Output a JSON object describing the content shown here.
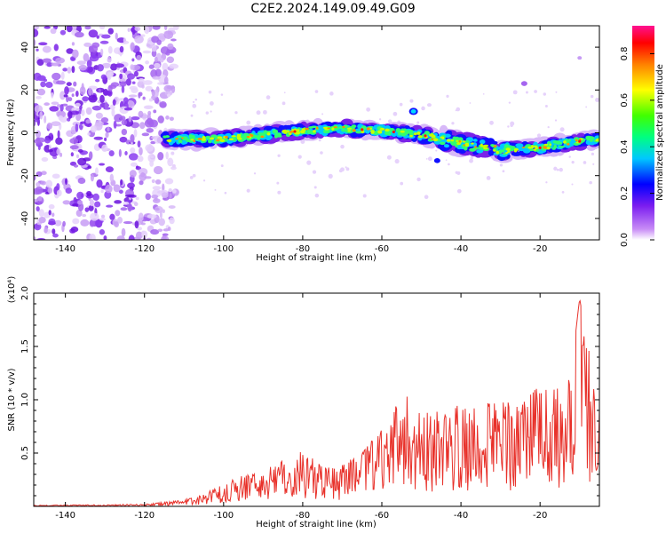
{
  "title": "C2E2.2024.149.09.49.G09",
  "colors": {
    "snr_line": "#e8312a",
    "spectrogram_noise": "#8a3cf0",
    "frame": "#000000"
  },
  "chart_data": [
    {
      "type": "heatmap",
      "xlabel": "Height of straight line (km)",
      "ylabel": "Frequency (Hz)",
      "xlim": [
        -148,
        -5
      ],
      "ylim": [
        -50,
        50
      ],
      "xticks": [
        -140,
        -120,
        -100,
        -80,
        -60,
        -40,
        -20
      ],
      "yticks": [
        -40,
        -20,
        0,
        20,
        40
      ],
      "colorbar": {
        "label": "Normalized spectral amplitude",
        "range": [
          0.0,
          0.92
        ],
        "ticks": [
          "0.0",
          "0.2",
          "0.4",
          "0.6",
          "0.8"
        ],
        "colormap": "rainbow-violet-to-red"
      },
      "noise_region_x": [
        -148,
        -115
      ],
      "signal_trace": {
        "x": [
          -115,
          -100,
          -90,
          -80,
          -70,
          -60,
          -50,
          -40,
          -30,
          -20,
          -10,
          -5
        ],
        "frequency": [
          -3,
          -3,
          -1,
          1,
          2,
          1,
          -1,
          -5,
          -8,
          -7,
          -4,
          -3
        ]
      },
      "grid": false,
      "legend": "colorbar right"
    },
    {
      "type": "line",
      "xlabel": "Height of straight line (km)",
      "ylabel": "SNR (10 * v/v)",
      "yscale_label": "(x10⁴)",
      "xlim": [
        -148,
        -5
      ],
      "ylim": [
        0,
        2.0
      ],
      "xticks": [
        -140,
        -120,
        -100,
        -80,
        -60,
        -40,
        -20
      ],
      "yticks": [
        0.5,
        1.0,
        1.5,
        2.0
      ],
      "ytick_labels": [
        "0.5",
        "1.0",
        "1.5",
        "2.0"
      ],
      "series": [
        {
          "color": "#e8312a",
          "envelope": {
            "x": [
              -148,
              -120,
              -110,
              -105,
              -100,
              -95,
              -90,
              -85,
              -80,
              -75,
              -70,
              -65,
              -60,
              -55,
              -50,
              -45,
              -40,
              -35,
              -30,
              -25,
              -20,
              -15,
              -12,
              -10,
              -8,
              -5
            ],
            "y": [
              0.01,
              0.02,
              0.06,
              0.12,
              0.22,
              0.3,
              0.35,
              0.45,
              0.52,
              0.4,
              0.4,
              0.5,
              0.75,
              1.1,
              0.9,
              0.9,
              1.0,
              0.95,
              1.0,
              0.95,
              1.15,
              1.1,
              1.3,
              1.95,
              1.5,
              1.25
            ]
          },
          "samples": 700,
          "ylim_note": "peak near -10 km"
        }
      ],
      "grid": false
    }
  ]
}
